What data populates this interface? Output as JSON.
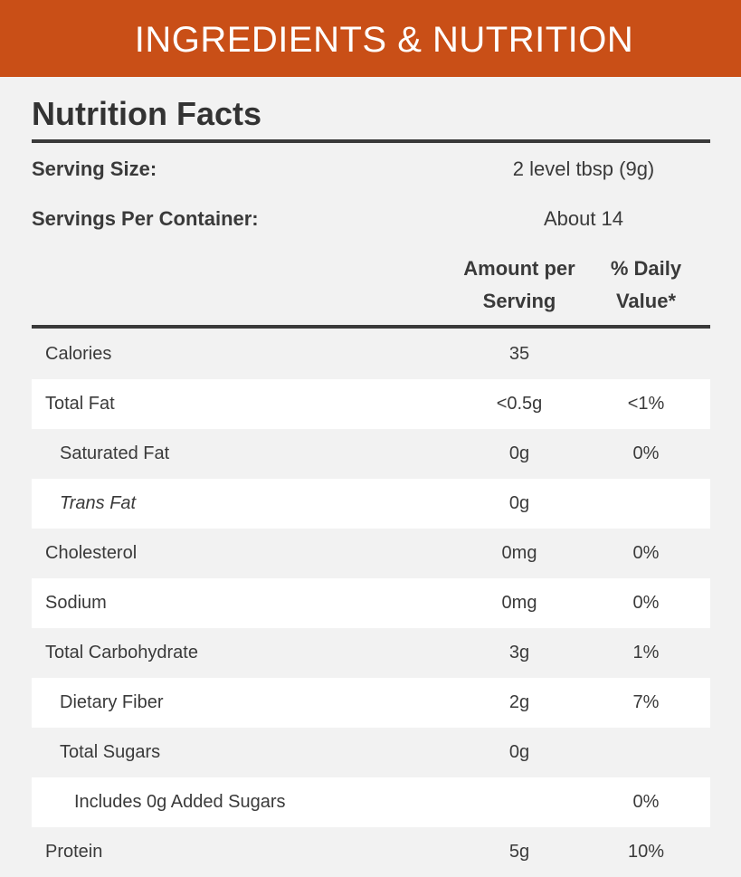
{
  "banner": {
    "title": "INGREDIENTS & NUTRITION",
    "color": "#c94f17"
  },
  "nutrition": {
    "title": "Nutrition Facts",
    "serving_size_label": "Serving Size:",
    "serving_size_value": "2 level tbsp (9g)",
    "servings_per_container_label": "Servings Per Container:",
    "servings_per_container_value": "About 14",
    "columns": {
      "amount_line1": "Amount per",
      "amount_line2": "Serving",
      "daily_line1": "% Daily",
      "daily_line2": "Value*"
    },
    "rows": [
      {
        "name": "Calories",
        "amount": "35",
        "daily": ""
      },
      {
        "name": "Total Fat",
        "amount": "<0.5g",
        "daily": "<1%"
      },
      {
        "name": "Saturated Fat",
        "amount": "0g",
        "daily": "0%"
      },
      {
        "name": "Trans Fat",
        "amount": "0g",
        "daily": ""
      },
      {
        "name": "Cholesterol",
        "amount": "0mg",
        "daily": "0%"
      },
      {
        "name": "Sodium",
        "amount": "0mg",
        "daily": "0%"
      },
      {
        "name": "Total Carbohydrate",
        "amount": "3g",
        "daily": "1%"
      },
      {
        "name": "Dietary Fiber",
        "amount": "2g",
        "daily": "7%"
      },
      {
        "name": "Total Sugars",
        "amount": "0g",
        "daily": ""
      },
      {
        "name": "Includes 0g Added Sugars",
        "amount": "",
        "daily": "0%"
      },
      {
        "name": "Protein",
        "amount": "5g",
        "daily": "10%"
      }
    ]
  }
}
